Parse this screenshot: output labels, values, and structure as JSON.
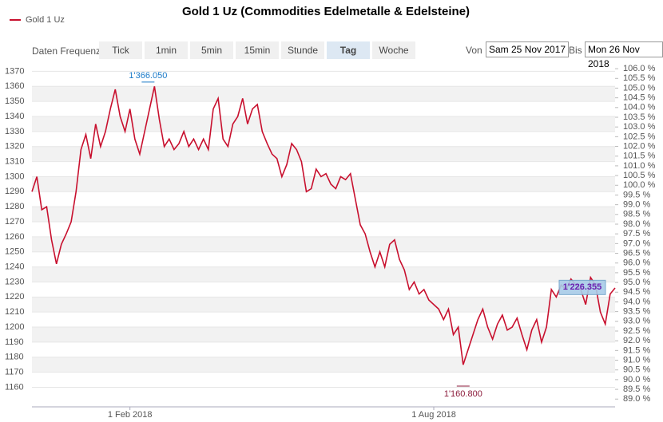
{
  "chart_data": {
    "type": "line",
    "title": "Gold 1 Uz (Commodities Edelmetalle & Edelsteine)",
    "series": [
      {
        "name": "Gold 1 Uz",
        "color": "#c8102e",
        "values": [
          1290,
          1300,
          1278,
          1280,
          1258,
          1242,
          1255,
          1262,
          1270,
          1290,
          1318,
          1328,
          1312,
          1335,
          1320,
          1330,
          1345,
          1358,
          1340,
          1330,
          1345,
          1325,
          1315,
          1330,
          1345,
          1360,
          1338,
          1320,
          1325,
          1318,
          1322,
          1330,
          1320,
          1325,
          1318,
          1325,
          1318,
          1345,
          1352,
          1325,
          1320,
          1335,
          1340,
          1352,
          1335,
          1345,
          1348,
          1330,
          1322,
          1315,
          1312,
          1300,
          1308,
          1322,
          1318,
          1310,
          1290,
          1292,
          1305,
          1300,
          1302,
          1295,
          1292,
          1300,
          1298,
          1302,
          1285,
          1268,
          1262,
          1250,
          1240,
          1250,
          1240,
          1255,
          1258,
          1245,
          1238,
          1225,
          1230,
          1222,
          1225,
          1218,
          1215,
          1212,
          1205,
          1212,
          1195,
          1200,
          1175,
          1185,
          1195,
          1205,
          1212,
          1200,
          1192,
          1202,
          1208,
          1198,
          1200,
          1206,
          1195,
          1185,
          1198,
          1205,
          1190,
          1200,
          1225,
          1220,
          1228,
          1225,
          1232,
          1228,
          1225,
          1215,
          1233,
          1228,
          1210,
          1202,
          1222,
          1226
        ]
      }
    ],
    "xlim": [
      0,
      119
    ],
    "xticks": [
      {
        "value": 20,
        "label": "1 Feb 2018"
      },
      {
        "value": 82,
        "label": "1 Aug 2018"
      }
    ],
    "ylim": [
      1147,
      1375
    ],
    "yticks": [
      1160,
      1170,
      1180,
      1190,
      1200,
      1210,
      1220,
      1230,
      1240,
      1250,
      1260,
      1270,
      1280,
      1290,
      1300,
      1310,
      1320,
      1330,
      1340,
      1350,
      1360,
      1370
    ],
    "y2lim": [
      88.6,
      106.25
    ],
    "y2ticks": [
      {
        "value": 89.0,
        "label": "89.0 %"
      },
      {
        "value": 89.5,
        "label": "89.5 %"
      },
      {
        "value": 90.0,
        "label": "90.0 %"
      },
      {
        "value": 90.5,
        "label": "90.5 %"
      },
      {
        "value": 91.0,
        "label": "91.0 %"
      },
      {
        "value": 91.5,
        "label": "91.5 %"
      },
      {
        "value": 92.0,
        "label": "92.0 %"
      },
      {
        "value": 92.5,
        "label": "92.5 %"
      },
      {
        "value": 93.0,
        "label": "93.0 %"
      },
      {
        "value": 93.5,
        "label": "93.5 %"
      },
      {
        "value": 94.0,
        "label": "94.0 %"
      },
      {
        "value": 94.5,
        "label": "94.5 %"
      },
      {
        "value": 95.0,
        "label": "95.0 %"
      },
      {
        "value": 95.5,
        "label": "95.5 %"
      },
      {
        "value": 96.0,
        "label": "96.0 %"
      },
      {
        "value": 96.5,
        "label": "96.5 %"
      },
      {
        "value": 97.0,
        "label": "97.0 %"
      },
      {
        "value": 97.5,
        "label": "97.5 %"
      },
      {
        "value": 98.0,
        "label": "98.0 %"
      },
      {
        "value": 98.5,
        "label": "98.5 %"
      },
      {
        "value": 99.0,
        "label": "99.0 %"
      },
      {
        "value": 99.5,
        "label": "99.5 %"
      },
      {
        "value": 100.0,
        "label": "100.0 %"
      },
      {
        "value": 100.5,
        "label": "100.5 %"
      },
      {
        "value": 101.0,
        "label": "101.0 %"
      },
      {
        "value": 101.5,
        "label": "101.5 %"
      },
      {
        "value": 102.0,
        "label": "102.0 %"
      },
      {
        "value": 102.5,
        "label": "102.5 %"
      },
      {
        "value": 103.0,
        "label": "103.0 %"
      },
      {
        "value": 103.5,
        "label": "103.5 %"
      },
      {
        "value": 104.0,
        "label": "104.0 %"
      },
      {
        "value": 104.5,
        "label": "104.5 %"
      },
      {
        "value": 105.0,
        "label": "105.0 %"
      },
      {
        "value": 105.5,
        "label": "105.5 %"
      },
      {
        "value": 106.0,
        "label": "106.0 %"
      }
    ],
    "annotations": [
      {
        "label": "1'366.050",
        "value": 1366.05
      },
      {
        "label": "1'160.800",
        "value": 1160.8
      },
      {
        "label": "1'226.355",
        "value": 1226.355
      }
    ],
    "grid": true
  },
  "toolbar": {
    "label": "Daten Frequenz",
    "buttons": [
      "Tick",
      "1min",
      "5min",
      "15min",
      "Stunde",
      "Tag",
      "Woche"
    ],
    "selected": "Tag",
    "from_label": "Von",
    "from": "Sam 25 Nov 2017",
    "to_label": "Bis",
    "to": "Mon 26 Nov 2018"
  }
}
